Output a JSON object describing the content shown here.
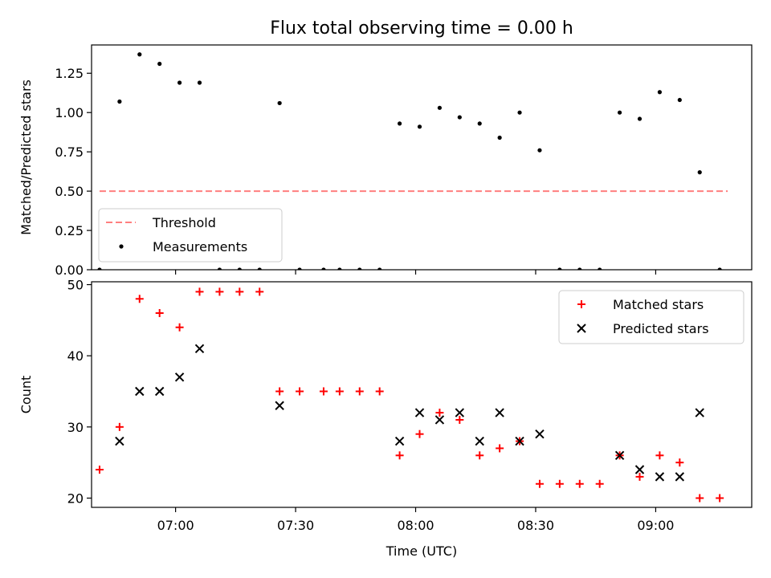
{
  "chart_data": [
    {
      "type": "scatter",
      "title": "Flux total observing time = 0.00 h",
      "xlabel": "",
      "ylabel": "Matched/Predicted stars",
      "ylim": [
        0,
        1.43
      ],
      "yticks": [
        0,
        0.25,
        0.5,
        0.75,
        1.0,
        1.25
      ],
      "ytick_labels": [
        "0.00",
        "0.25",
        "0.50",
        "0.75",
        "1.00",
        "1.25"
      ],
      "xlim": [
        "06:39",
        "09:24"
      ],
      "xticks": [
        "07:00",
        "07:30",
        "08:00",
        "08:30",
        "09:00"
      ],
      "show_xtick_labels": false,
      "legend": {
        "position": "lower-left"
      },
      "series": [
        {
          "name": "Threshold",
          "style": "dashed-line",
          "color": "#ff7f7f",
          "x": [
            "06:41",
            "09:18"
          ],
          "y": [
            0.5,
            0.5
          ]
        },
        {
          "name": "Measurements",
          "style": "dot",
          "color": "#000000",
          "x": [
            "06:41",
            "06:46",
            "06:51",
            "06:56",
            "07:01",
            "07:06",
            "07:11",
            "07:16",
            "07:21",
            "07:26",
            "07:31",
            "07:37",
            "07:41",
            "07:46",
            "07:51",
            "07:56",
            "08:01",
            "08:06",
            "08:11",
            "08:16",
            "08:21",
            "08:26",
            "08:31",
            "08:36",
            "08:41",
            "08:46",
            "08:51",
            "08:56",
            "09:01",
            "09:06",
            "09:11",
            "09:16"
          ],
          "y": [
            0.0,
            1.07,
            1.37,
            1.31,
            1.19,
            1.19,
            0.0,
            0.0,
            0.0,
            1.06,
            0.0,
            0.0,
            0.0,
            0.0,
            0.0,
            0.93,
            0.91,
            1.03,
            0.97,
            0.93,
            0.84,
            1.0,
            0.76,
            0.0,
            0.0,
            0.0,
            1.0,
            0.96,
            1.13,
            1.08,
            0.62,
            0.0
          ]
        }
      ]
    },
    {
      "type": "scatter",
      "title": "",
      "xlabel": "Time (UTC)",
      "ylabel": "Count",
      "ylim": [
        18.7,
        50.4
      ],
      "yticks": [
        20,
        30,
        40,
        50
      ],
      "ytick_labels": [
        "20",
        "30",
        "40",
        "50"
      ],
      "xlim": [
        "06:39",
        "09:24"
      ],
      "xticks": [
        "07:00",
        "07:30",
        "08:00",
        "08:30",
        "09:00"
      ],
      "show_xtick_labels": true,
      "legend": {
        "position": "upper-right"
      },
      "series": [
        {
          "name": "Matched stars",
          "style": "plus",
          "color": "#ff0000",
          "x": [
            "06:41",
            "06:46",
            "06:51",
            "06:56",
            "07:01",
            "07:06",
            "07:11",
            "07:16",
            "07:21",
            "07:26",
            "07:31",
            "07:37",
            "07:41",
            "07:46",
            "07:51",
            "07:56",
            "08:01",
            "08:06",
            "08:11",
            "08:16",
            "08:21",
            "08:26",
            "08:31",
            "08:36",
            "08:41",
            "08:46",
            "08:51",
            "08:56",
            "09:01",
            "09:06",
            "09:11",
            "09:16"
          ],
          "y": [
            24,
            30,
            48,
            46,
            44,
            49,
            49,
            49,
            49,
            35,
            35,
            35,
            35,
            35,
            35,
            26,
            29,
            32,
            31,
            26,
            27,
            28,
            22,
            22,
            22,
            22,
            26,
            23,
            26,
            25,
            20,
            20
          ]
        },
        {
          "name": "Predicted stars",
          "style": "x",
          "color": "#000000",
          "x": [
            "06:46",
            "06:51",
            "06:56",
            "07:01",
            "07:06",
            "07:26",
            "07:56",
            "08:01",
            "08:06",
            "08:11",
            "08:16",
            "08:21",
            "08:26",
            "08:31",
            "08:51",
            "08:56",
            "09:01",
            "09:06",
            "09:11"
          ],
          "y": [
            28,
            35,
            35,
            37,
            41,
            33,
            28,
            32,
            31,
            32,
            28,
            32,
            28,
            29,
            26,
            24,
            23,
            23,
            32
          ]
        }
      ]
    }
  ]
}
